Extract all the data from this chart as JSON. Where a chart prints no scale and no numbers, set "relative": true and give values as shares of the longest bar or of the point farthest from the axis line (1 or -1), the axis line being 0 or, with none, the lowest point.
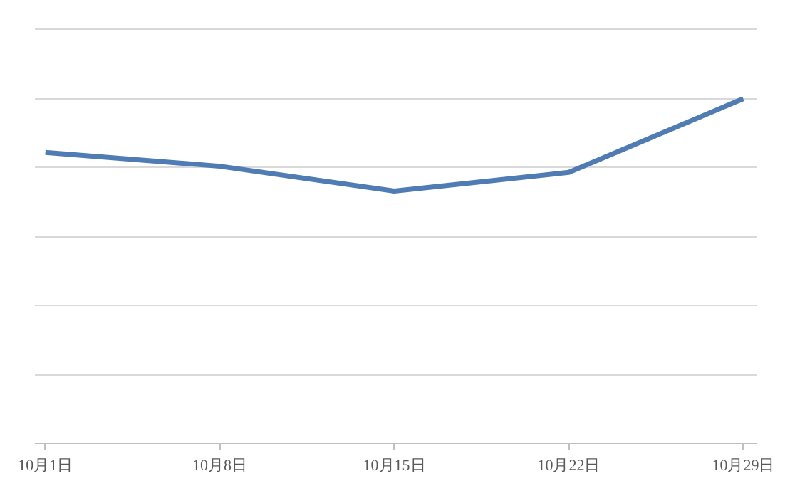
{
  "chart_data": {
    "type": "line",
    "relative": true,
    "categories": [
      "10月1日",
      "10月8日",
      "10月15日",
      "10月22日",
      "10月29日"
    ],
    "series": [
      {
        "color": "#4f7db3",
        "values": [
          0.844,
          0.804,
          0.732,
          0.786,
          1
        ]
      }
    ],
    "grid": "y",
    "marker": "none",
    "line_style": "solid",
    "tick_labels": "x"
  }
}
